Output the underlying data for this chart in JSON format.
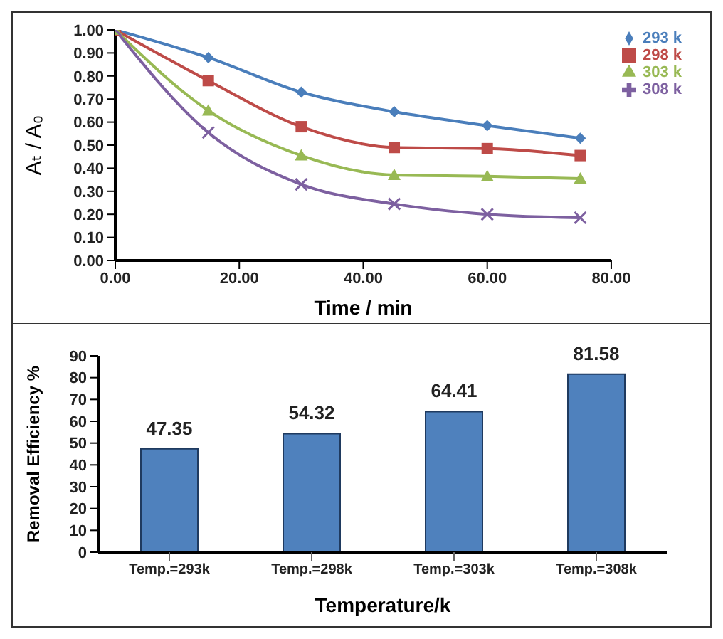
{
  "chart_data": [
    {
      "type": "line",
      "xlabel": "Time / min",
      "ylabel": "Aₜ / A₀",
      "x": [
        0,
        15,
        30,
        45,
        60,
        75
      ],
      "series": [
        {
          "name": "293 k",
          "color": "#4a7ebb",
          "marker": "diamond",
          "values": [
            1.0,
            0.88,
            0.73,
            0.645,
            0.585,
            0.53
          ]
        },
        {
          "name": "298 k",
          "color": "#be4b48",
          "marker": "square",
          "values": [
            1.0,
            0.78,
            0.58,
            0.49,
            0.485,
            0.455
          ]
        },
        {
          "name": "303 k",
          "color": "#98b954",
          "marker": "triangle",
          "values": [
            1.0,
            0.65,
            0.455,
            0.37,
            0.365,
            0.355
          ]
        },
        {
          "name": "308 k",
          "color": "#7d60a0",
          "marker": "cross",
          "values": [
            1.0,
            0.555,
            0.33,
            0.245,
            0.2,
            0.185
          ]
        }
      ],
      "xlim": [
        0,
        80
      ],
      "xticks": [
        {
          "value": 0,
          "label": "0.00"
        },
        {
          "value": 20,
          "label": "20.00"
        },
        {
          "value": 40,
          "label": "40.00"
        },
        {
          "value": 60,
          "label": "60.00"
        },
        {
          "value": 80,
          "label": "80.00"
        }
      ],
      "ylim": [
        0,
        1
      ],
      "yticks": [
        {
          "value": 0,
          "label": "0.00"
        },
        {
          "value": 0.1,
          "label": "0.10"
        },
        {
          "value": 0.2,
          "label": "0.20"
        },
        {
          "value": 0.3,
          "label": "0.30"
        },
        {
          "value": 0.4,
          "label": "0.40"
        },
        {
          "value": 0.5,
          "label": "0.50"
        },
        {
          "value": 0.6,
          "label": "0.60"
        },
        {
          "value": 0.7,
          "label": "0.70"
        },
        {
          "value": 0.8,
          "label": "0.80"
        },
        {
          "value": 0.9,
          "label": "0.90"
        },
        {
          "value": 1,
          "label": "1.00"
        }
      ],
      "legend": "top right",
      "grid": false
    },
    {
      "type": "bar",
      "xlabel": "Temperature/k",
      "ylabel": "Removal Efficiency %",
      "categories": [
        "Temp.=293k",
        "Temp.=298k",
        "Temp.=303k",
        "Temp.=308k"
      ],
      "values": [
        47.35,
        54.32,
        64.41,
        81.58
      ],
      "color": "#4f81bd",
      "data_labels": true,
      "ylim": [
        0,
        90
      ],
      "yticks": [
        0,
        10,
        20,
        30,
        40,
        50,
        60,
        70,
        80,
        90
      ],
      "grid": false
    }
  ]
}
